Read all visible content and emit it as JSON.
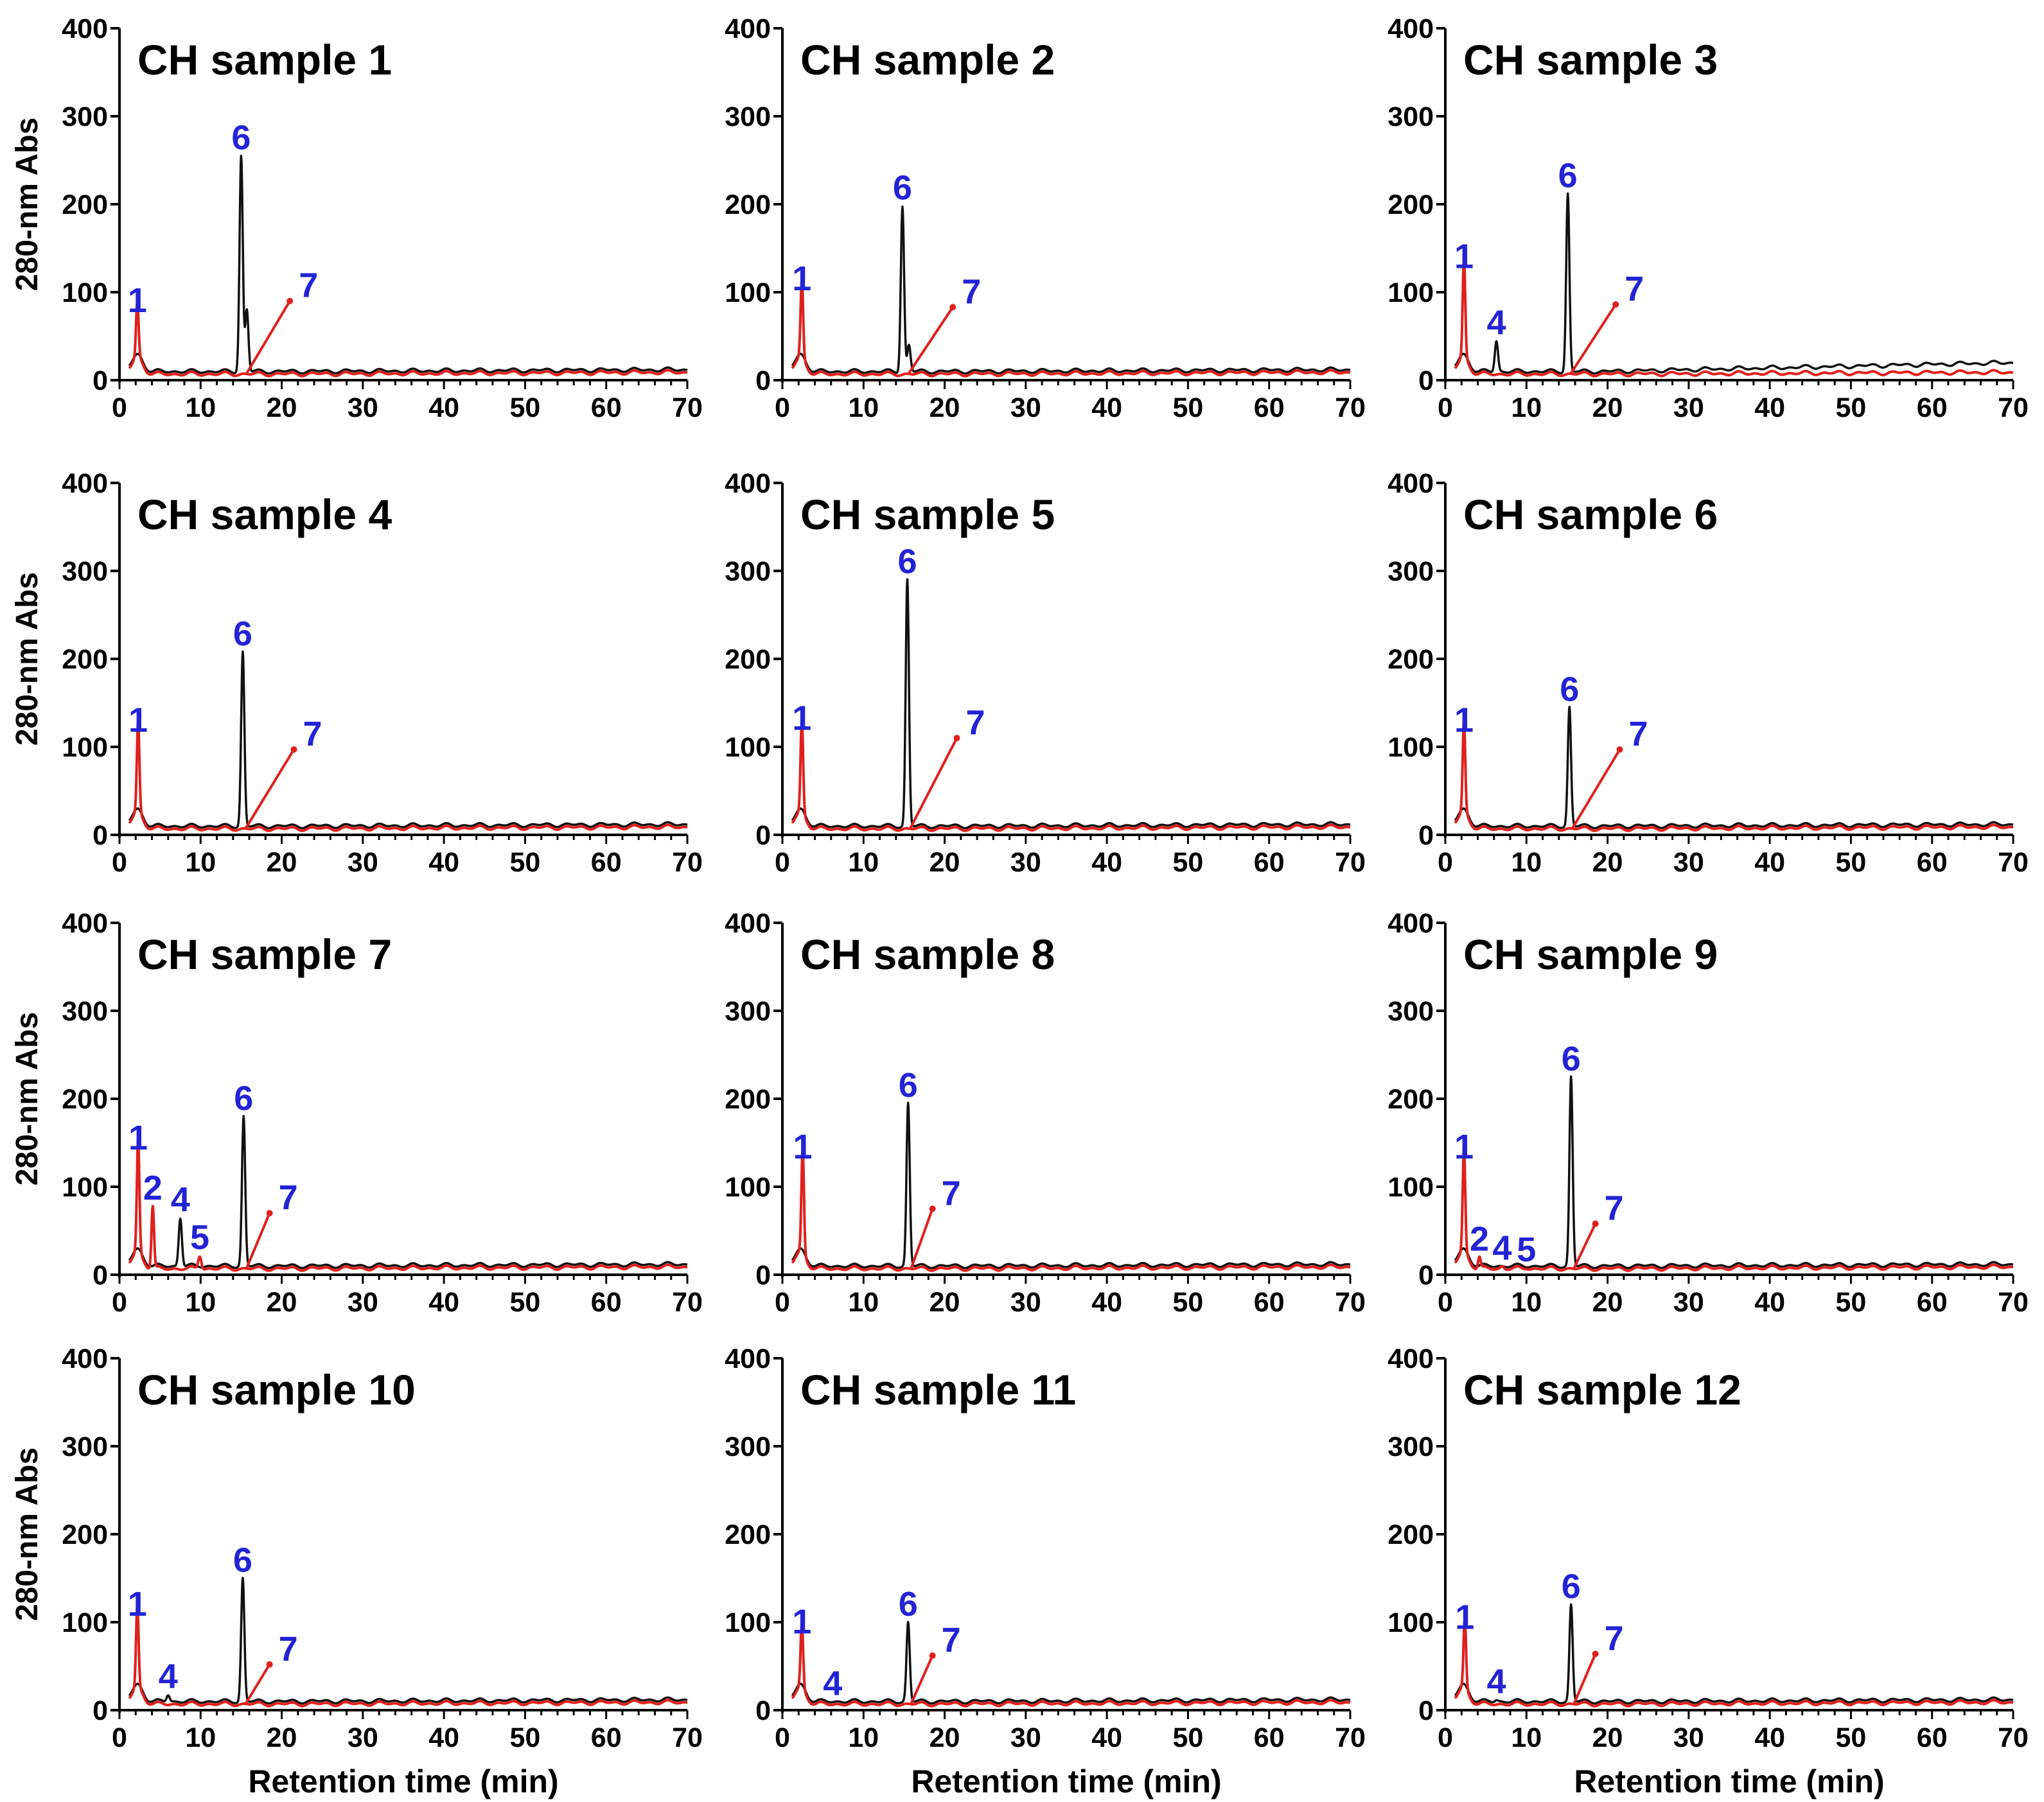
{
  "figure": {
    "ylabel": "280-nm Abs",
    "xlabel": "Retention time (min)",
    "colors": {
      "axis": "#000000",
      "red_trace": "#e0201c",
      "black_trace": "#111111",
      "peak_label": "#2323d6"
    }
  },
  "chart_data": [
    {
      "type": "line",
      "title": "CH sample 1",
      "xlabel": "",
      "ylabel": "280-nm Abs",
      "xlim": [
        0,
        70
      ],
      "ylim": [
        0,
        400
      ],
      "xticks": [
        "0",
        "10",
        "20",
        "30",
        "40",
        "50",
        "60",
        "70"
      ],
      "yticks": [
        "0",
        "100",
        "200",
        "300",
        "400"
      ],
      "series": [
        {
          "name": "red trace",
          "peaks": [
            [
              2.2,
              70
            ]
          ]
        },
        {
          "name": "black trace",
          "peaks": [
            [
              15.0,
              255
            ],
            [
              15.7,
              80
            ]
          ]
        }
      ],
      "peak_labels": [
        {
          "text": "1",
          "x": 2.2,
          "y": 70
        },
        {
          "text": "6",
          "x": 15.0,
          "y": 255
        },
        {
          "text": "7",
          "x": 21,
          "y": 90,
          "pointer_to": [
            15.7,
            8
          ]
        }
      ]
    },
    {
      "type": "line",
      "title": "CH sample 2",
      "xlabel": "",
      "ylabel": "",
      "xlim": [
        0,
        70
      ],
      "ylim": [
        0,
        400
      ],
      "xticks": [
        "0",
        "10",
        "20",
        "30",
        "40",
        "50",
        "60",
        "70"
      ],
      "yticks": [
        "0",
        "100",
        "200",
        "300",
        "400"
      ],
      "series": [
        {
          "name": "red trace",
          "peaks": [
            [
              2.4,
              95
            ]
          ]
        },
        {
          "name": "black trace",
          "peaks": [
            [
              14.8,
              198
            ],
            [
              15.6,
              40
            ]
          ]
        }
      ],
      "peak_labels": [
        {
          "text": "1",
          "x": 2.4,
          "y": 95
        },
        {
          "text": "6",
          "x": 14.8,
          "y": 198
        },
        {
          "text": "7",
          "x": 21,
          "y": 83,
          "pointer_to": [
            15.6,
            8
          ]
        }
      ]
    },
    {
      "type": "line",
      "title": "CH sample 3",
      "xlabel": "",
      "ylabel": "",
      "xlim": [
        0,
        70
      ],
      "ylim": [
        0,
        400
      ],
      "xticks": [
        "0",
        "10",
        "20",
        "30",
        "40",
        "50",
        "60",
        "70"
      ],
      "yticks": [
        "0",
        "100",
        "200",
        "300",
        "400"
      ],
      "series": [
        {
          "name": "red trace",
          "peaks": [
            [
              2.3,
              120
            ]
          ]
        },
        {
          "name": "black trace",
          "peaks": [
            [
              6.3,
              45
            ],
            [
              15.1,
              212
            ]
          ]
        }
      ],
      "peak_labels": [
        {
          "text": "1",
          "x": 2.3,
          "y": 120
        },
        {
          "text": "4",
          "x": 6.3,
          "y": 45
        },
        {
          "text": "6",
          "x": 15.1,
          "y": 212
        },
        {
          "text": "7",
          "x": 21,
          "y": 86,
          "pointer_to": [
            15.5,
            8
          ]
        }
      ]
    },
    {
      "type": "line",
      "title": "CH sample 4",
      "xlabel": "",
      "ylabel": "280-nm Abs",
      "xlim": [
        0,
        70
      ],
      "ylim": [
        0,
        400
      ],
      "xticks": [
        "0",
        "10",
        "20",
        "30",
        "40",
        "50",
        "60",
        "70"
      ],
      "yticks": [
        "0",
        "100",
        "200",
        "300",
        "400"
      ],
      "series": [
        {
          "name": "red trace",
          "peaks": [
            [
              2.3,
              110
            ]
          ]
        },
        {
          "name": "black trace",
          "peaks": [
            [
              15.2,
              208
            ]
          ]
        }
      ],
      "peak_labels": [
        {
          "text": "1",
          "x": 2.3,
          "y": 110
        },
        {
          "text": "6",
          "x": 15.2,
          "y": 208
        },
        {
          "text": "7",
          "x": 21.5,
          "y": 97,
          "pointer_to": [
            15.6,
            8
          ]
        }
      ]
    },
    {
      "type": "line",
      "title": "CH sample 5",
      "xlabel": "",
      "ylabel": "",
      "xlim": [
        0,
        70
      ],
      "ylim": [
        0,
        400
      ],
      "xticks": [
        "0",
        "10",
        "20",
        "30",
        "40",
        "50",
        "60",
        "70"
      ],
      "yticks": [
        "0",
        "100",
        "200",
        "300",
        "400"
      ],
      "series": [
        {
          "name": "red trace",
          "peaks": [
            [
              2.4,
              112
            ]
          ]
        },
        {
          "name": "black trace",
          "peaks": [
            [
              15.4,
              290
            ]
          ]
        }
      ],
      "peak_labels": [
        {
          "text": "1",
          "x": 2.4,
          "y": 112
        },
        {
          "text": "6",
          "x": 15.4,
          "y": 290
        },
        {
          "text": "7",
          "x": 21.5,
          "y": 110,
          "pointer_to": [
            15.8,
            8
          ]
        }
      ]
    },
    {
      "type": "line",
      "title": "CH sample 6",
      "xlabel": "",
      "ylabel": "",
      "xlim": [
        0,
        70
      ],
      "ylim": [
        0,
        400
      ],
      "xticks": [
        "0",
        "10",
        "20",
        "30",
        "40",
        "50",
        "60",
        "70"
      ],
      "yticks": [
        "0",
        "100",
        "200",
        "300",
        "400"
      ],
      "series": [
        {
          "name": "red trace",
          "peaks": [
            [
              2.3,
              110
            ]
          ]
        },
        {
          "name": "black trace",
          "peaks": [
            [
              15.3,
              145
            ]
          ]
        }
      ],
      "peak_labels": [
        {
          "text": "1",
          "x": 2.3,
          "y": 110
        },
        {
          "text": "6",
          "x": 15.3,
          "y": 145
        },
        {
          "text": "7",
          "x": 21.5,
          "y": 97,
          "pointer_to": [
            15.7,
            8
          ]
        }
      ]
    },
    {
      "type": "line",
      "title": "CH sample 7",
      "xlabel": "",
      "ylabel": "280-nm Abs",
      "xlim": [
        0,
        70
      ],
      "ylim": [
        0,
        400
      ],
      "xticks": [
        "0",
        "10",
        "20",
        "30",
        "40",
        "50",
        "60",
        "70"
      ],
      "yticks": [
        "0",
        "100",
        "200",
        "300",
        "400"
      ],
      "series": [
        {
          "name": "red trace",
          "peaks": [
            [
              2.3,
              135
            ],
            [
              4.1,
              78
            ],
            [
              9.9,
              22
            ]
          ]
        },
        {
          "name": "black trace",
          "peaks": [
            [
              7.5,
              65
            ],
            [
              15.3,
              180
            ]
          ]
        }
      ],
      "peak_labels": [
        {
          "text": "1",
          "x": 2.3,
          "y": 135
        },
        {
          "text": "2",
          "x": 4.1,
          "y": 78
        },
        {
          "text": "4",
          "x": 7.5,
          "y": 65
        },
        {
          "text": "5",
          "x": 9.9,
          "y": 22
        },
        {
          "text": "6",
          "x": 15.3,
          "y": 180
        },
        {
          "text": "7",
          "x": 18.5,
          "y": 70,
          "pointer_to": [
            15.7,
            8
          ]
        }
      ]
    },
    {
      "type": "line",
      "title": "CH sample 8",
      "xlabel": "",
      "ylabel": "",
      "xlim": [
        0,
        70
      ],
      "ylim": [
        0,
        400
      ],
      "xticks": [
        "0",
        "10",
        "20",
        "30",
        "40",
        "50",
        "60",
        "70"
      ],
      "yticks": [
        "0",
        "100",
        "200",
        "300",
        "400"
      ],
      "series": [
        {
          "name": "red trace",
          "peaks": [
            [
              2.5,
              125
            ]
          ]
        },
        {
          "name": "black trace",
          "peaks": [
            [
              15.5,
              195
            ]
          ]
        }
      ],
      "peak_labels": [
        {
          "text": "1",
          "x": 2.5,
          "y": 125
        },
        {
          "text": "6",
          "x": 15.5,
          "y": 195
        },
        {
          "text": "7",
          "x": 18.5,
          "y": 75,
          "pointer_to": [
            15.9,
            8
          ]
        }
      ]
    },
    {
      "type": "line",
      "title": "CH sample 9",
      "xlabel": "",
      "ylabel": "",
      "xlim": [
        0,
        70
      ],
      "ylim": [
        0,
        400
      ],
      "xticks": [
        "0",
        "10",
        "20",
        "30",
        "40",
        "50",
        "60",
        "70"
      ],
      "yticks": [
        "0",
        "100",
        "200",
        "300",
        "400"
      ],
      "series": [
        {
          "name": "red trace",
          "peaks": [
            [
              2.3,
              125
            ],
            [
              4.2,
              20
            ],
            [
              7,
              10
            ],
            [
              10,
              8
            ]
          ]
        },
        {
          "name": "black trace",
          "peaks": [
            [
              15.5,
              225
            ]
          ]
        }
      ],
      "peak_labels": [
        {
          "text": "1",
          "x": 2.3,
          "y": 125
        },
        {
          "text": "2",
          "x": 4.2,
          "y": 20
        },
        {
          "text": "4",
          "x": 7,
          "y": 10
        },
        {
          "text": "5",
          "x": 10,
          "y": 8
        },
        {
          "text": "6",
          "x": 15.5,
          "y": 225
        },
        {
          "text": "7",
          "x": 18.5,
          "y": 58,
          "pointer_to": [
            15.9,
            8
          ]
        }
      ]
    },
    {
      "type": "line",
      "title": "CH sample 10",
      "xlabel": "Retention time (min)",
      "ylabel": "280-nm Abs",
      "xlim": [
        0,
        70
      ],
      "ylim": [
        0,
        400
      ],
      "xticks": [
        "0",
        "10",
        "20",
        "30",
        "40",
        "50",
        "60",
        "70"
      ],
      "yticks": [
        "0",
        "100",
        "200",
        "300",
        "400"
      ],
      "series": [
        {
          "name": "red trace",
          "peaks": [
            [
              2.2,
              100
            ]
          ]
        },
        {
          "name": "black trace",
          "peaks": [
            [
              6.0,
              18
            ],
            [
              15.2,
              150
            ]
          ]
        }
      ],
      "peak_labels": [
        {
          "text": "1",
          "x": 2.2,
          "y": 100
        },
        {
          "text": "4",
          "x": 6.0,
          "y": 18
        },
        {
          "text": "6",
          "x": 15.2,
          "y": 150
        },
        {
          "text": "7",
          "x": 18.5,
          "y": 52,
          "pointer_to": [
            15.6,
            8
          ]
        }
      ]
    },
    {
      "type": "line",
      "title": "CH sample 11",
      "xlabel": "Retention time (min)",
      "ylabel": "",
      "xlim": [
        0,
        70
      ],
      "ylim": [
        0,
        400
      ],
      "xticks": [
        "0",
        "10",
        "20",
        "30",
        "40",
        "50",
        "60",
        "70"
      ],
      "yticks": [
        "0",
        "100",
        "200",
        "300",
        "400"
      ],
      "series": [
        {
          "name": "red trace",
          "peaks": [
            [
              2.4,
              80
            ]
          ]
        },
        {
          "name": "black trace",
          "peaks": [
            [
              6.2,
              10
            ],
            [
              15.5,
              100
            ]
          ]
        }
      ],
      "peak_labels": [
        {
          "text": "1",
          "x": 2.4,
          "y": 80
        },
        {
          "text": "4",
          "x": 6.2,
          "y": 10
        },
        {
          "text": "6",
          "x": 15.5,
          "y": 100
        },
        {
          "text": "7",
          "x": 18.5,
          "y": 62,
          "pointer_to": [
            15.9,
            8
          ]
        }
      ]
    },
    {
      "type": "line",
      "title": "CH sample 12",
      "xlabel": "Retention time (min)",
      "ylabel": "",
      "xlim": [
        0,
        70
      ],
      "ylim": [
        0,
        400
      ],
      "xticks": [
        "0",
        "10",
        "20",
        "30",
        "40",
        "50",
        "60",
        "70"
      ],
      "yticks": [
        "0",
        "100",
        "200",
        "300",
        "400"
      ],
      "series": [
        {
          "name": "red trace",
          "peaks": [
            [
              2.4,
              85
            ]
          ]
        },
        {
          "name": "black trace",
          "peaks": [
            [
              6.3,
              12
            ],
            [
              15.5,
              120
            ]
          ]
        }
      ],
      "peak_labels": [
        {
          "text": "1",
          "x": 2.4,
          "y": 85
        },
        {
          "text": "4",
          "x": 6.3,
          "y": 12
        },
        {
          "text": "6",
          "x": 15.5,
          "y": 120
        },
        {
          "text": "7",
          "x": 18.5,
          "y": 64,
          "pointer_to": [
            15.9,
            8
          ]
        }
      ]
    }
  ]
}
